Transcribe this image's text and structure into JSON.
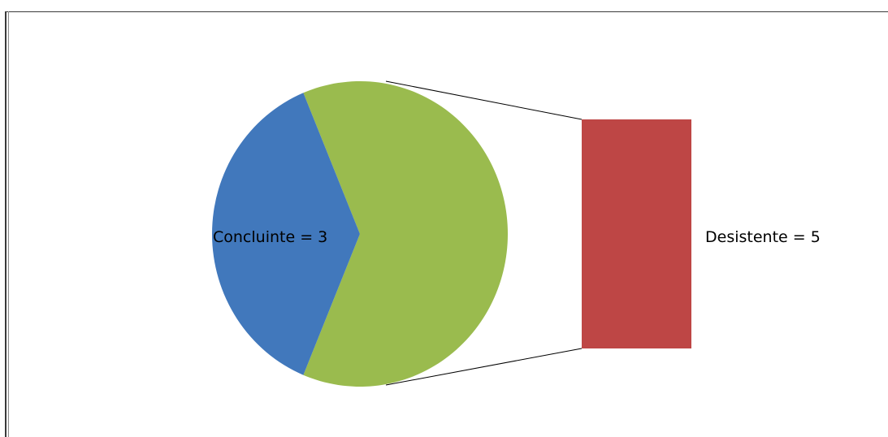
{
  "chart_data": {
    "type": "bar-of-pie",
    "categories": [
      "Concluinte",
      "Desistente"
    ],
    "values": [
      3,
      5
    ],
    "labels": [
      "Concluinte = 3",
      "Desistente = 5"
    ],
    "colors": {
      "Concluinte": "#4178BC",
      "Desistente_pie": "#9ABB4E",
      "Desistente_bar": "#BE4645",
      "connector": "#000000"
    },
    "legend": "none",
    "title": "",
    "grid": false
  }
}
